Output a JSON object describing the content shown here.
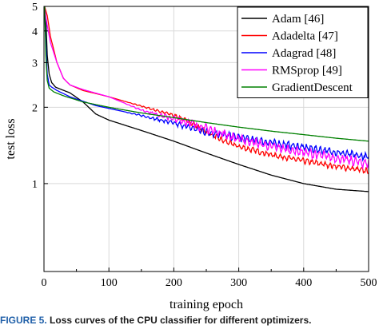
{
  "caption": {
    "label": "FIGURE 5.",
    "text": "Loss curves of the CPU classifier for different optimizers."
  },
  "chart_data": {
    "type": "line",
    "title": "",
    "xlabel": "training epoch",
    "ylabel": "test loss",
    "xlim": [
      0,
      500
    ],
    "ylim": [
      0.45,
      5
    ],
    "yscale": "log",
    "grid": true,
    "legend_position": "top-right",
    "x_ticks": [
      0,
      100,
      200,
      300,
      400,
      500
    ],
    "y_ticks": [
      1,
      2,
      3,
      4,
      5
    ],
    "series": [
      {
        "name": "Adam [46]",
        "color": "#000000",
        "noise": 0,
        "points": [
          [
            1,
            5.0
          ],
          [
            3,
            4.5
          ],
          [
            5,
            3.2
          ],
          [
            8,
            2.7
          ],
          [
            12,
            2.5
          ],
          [
            18,
            2.4
          ],
          [
            25,
            2.36
          ],
          [
            40,
            2.28
          ],
          [
            60,
            2.1
          ],
          [
            80,
            1.88
          ],
          [
            100,
            1.78
          ],
          [
            150,
            1.62
          ],
          [
            200,
            1.47
          ],
          [
            250,
            1.32
          ],
          [
            300,
            1.19
          ],
          [
            350,
            1.08
          ],
          [
            400,
            1.0
          ],
          [
            450,
            0.95
          ],
          [
            500,
            0.93
          ]
        ]
      },
      {
        "name": "Adadelta [47]",
        "color": "#ff0000",
        "noise": 0.03,
        "points": [
          [
            1,
            5.0
          ],
          [
            5,
            4.6
          ],
          [
            10,
            3.8
          ],
          [
            20,
            3.0
          ],
          [
            30,
            2.6
          ],
          [
            40,
            2.45
          ],
          [
            60,
            2.33
          ],
          [
            100,
            2.2
          ],
          [
            150,
            2.02
          ],
          [
            200,
            1.86
          ],
          [
            230,
            1.72
          ],
          [
            250,
            1.6
          ],
          [
            275,
            1.48
          ],
          [
            300,
            1.4
          ],
          [
            350,
            1.3
          ],
          [
            400,
            1.23
          ],
          [
            450,
            1.17
          ],
          [
            500,
            1.12
          ]
        ]
      },
      {
        "name": "Adagrad [48]",
        "color": "#0000ff",
        "noise": 0.04,
        "points": [
          [
            1,
            5.0
          ],
          [
            3,
            3.6
          ],
          [
            5,
            2.7
          ],
          [
            8,
            2.45
          ],
          [
            12,
            2.4
          ],
          [
            20,
            2.33
          ],
          [
            40,
            2.2
          ],
          [
            80,
            2.03
          ],
          [
            120,
            1.93
          ],
          [
            160,
            1.83
          ],
          [
            200,
            1.73
          ],
          [
            250,
            1.6
          ],
          [
            300,
            1.52
          ],
          [
            350,
            1.45
          ],
          [
            400,
            1.39
          ],
          [
            450,
            1.33
          ],
          [
            500,
            1.27
          ]
        ]
      },
      {
        "name": "RMSprop [49]",
        "color": "#ff00ff",
        "noise": 0.05,
        "points": [
          [
            1,
            4.9
          ],
          [
            5,
            4.2
          ],
          [
            10,
            3.6
          ],
          [
            20,
            3.0
          ],
          [
            30,
            2.6
          ],
          [
            40,
            2.45
          ],
          [
            60,
            2.35
          ],
          [
            100,
            2.2
          ],
          [
            150,
            1.95
          ],
          [
            200,
            1.8
          ],
          [
            230,
            1.72
          ],
          [
            260,
            1.62
          ],
          [
            300,
            1.5
          ],
          [
            350,
            1.4
          ],
          [
            400,
            1.33
          ],
          [
            450,
            1.26
          ],
          [
            500,
            1.2
          ]
        ]
      },
      {
        "name": "GradientDescent",
        "color": "#008000",
        "noise": 0,
        "points": [
          [
            1,
            5.0
          ],
          [
            3,
            3.2
          ],
          [
            5,
            2.55
          ],
          [
            8,
            2.38
          ],
          [
            15,
            2.3
          ],
          [
            30,
            2.22
          ],
          [
            60,
            2.1
          ],
          [
            100,
            2.0
          ],
          [
            150,
            1.9
          ],
          [
            200,
            1.82
          ],
          [
            250,
            1.74
          ],
          [
            300,
            1.67
          ],
          [
            350,
            1.61
          ],
          [
            400,
            1.56
          ],
          [
            450,
            1.51
          ],
          [
            500,
            1.47
          ]
        ]
      }
    ]
  }
}
